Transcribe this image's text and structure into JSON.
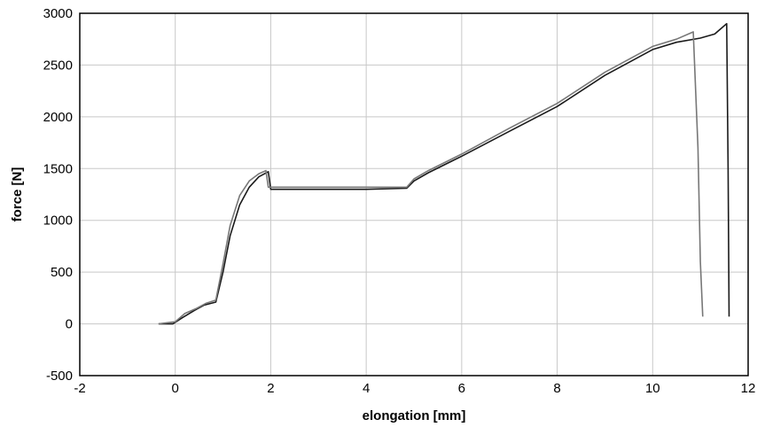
{
  "chart_data": {
    "type": "line",
    "xlabel": "elongation [mm]",
    "ylabel": "force [N]",
    "xlim": [
      -2,
      12
    ],
    "ylim": [
      -500,
      3000
    ],
    "xticks": [
      -2,
      0,
      2,
      4,
      6,
      8,
      10,
      12
    ],
    "yticks": [
      -500,
      0,
      500,
      1000,
      1500,
      2000,
      2500,
      3000
    ],
    "grid": true,
    "legend": "none",
    "series": [
      {
        "color": "#1a1a1a",
        "x": [
          -0.35,
          -0.05,
          0.15,
          0.4,
          0.6,
          0.85,
          1.0,
          1.15,
          1.35,
          1.55,
          1.75,
          1.95,
          2.0,
          3.0,
          4.0,
          4.85,
          5.0,
          5.3,
          6.0,
          7.0,
          8.0,
          9.0,
          10.0,
          10.5,
          11.0,
          11.3,
          11.45,
          11.55,
          11.58,
          11.6
        ],
        "y": [
          0,
          0,
          60,
          130,
          180,
          210,
          500,
          850,
          1150,
          1320,
          1420,
          1470,
          1300,
          1300,
          1300,
          1310,
          1380,
          1460,
          1620,
          1860,
          2100,
          2400,
          2650,
          2720,
          2760,
          2800,
          2860,
          2900,
          1500,
          70
        ]
      },
      {
        "color": "#777777",
        "x": [
          -0.35,
          0.0,
          0.2,
          0.45,
          0.65,
          0.85,
          1.0,
          1.15,
          1.35,
          1.55,
          1.75,
          1.9,
          1.95,
          3.0,
          4.0,
          4.85,
          5.0,
          5.3,
          6.0,
          7.0,
          8.0,
          9.0,
          10.0,
          10.5,
          10.85,
          10.95,
          11.0,
          11.05
        ],
        "y": [
          0,
          20,
          100,
          150,
          200,
          230,
          580,
          950,
          1240,
          1380,
          1450,
          1480,
          1320,
          1320,
          1320,
          1320,
          1400,
          1480,
          1640,
          1890,
          2130,
          2430,
          2680,
          2750,
          2820,
          1700,
          600,
          70
        ]
      }
    ]
  }
}
